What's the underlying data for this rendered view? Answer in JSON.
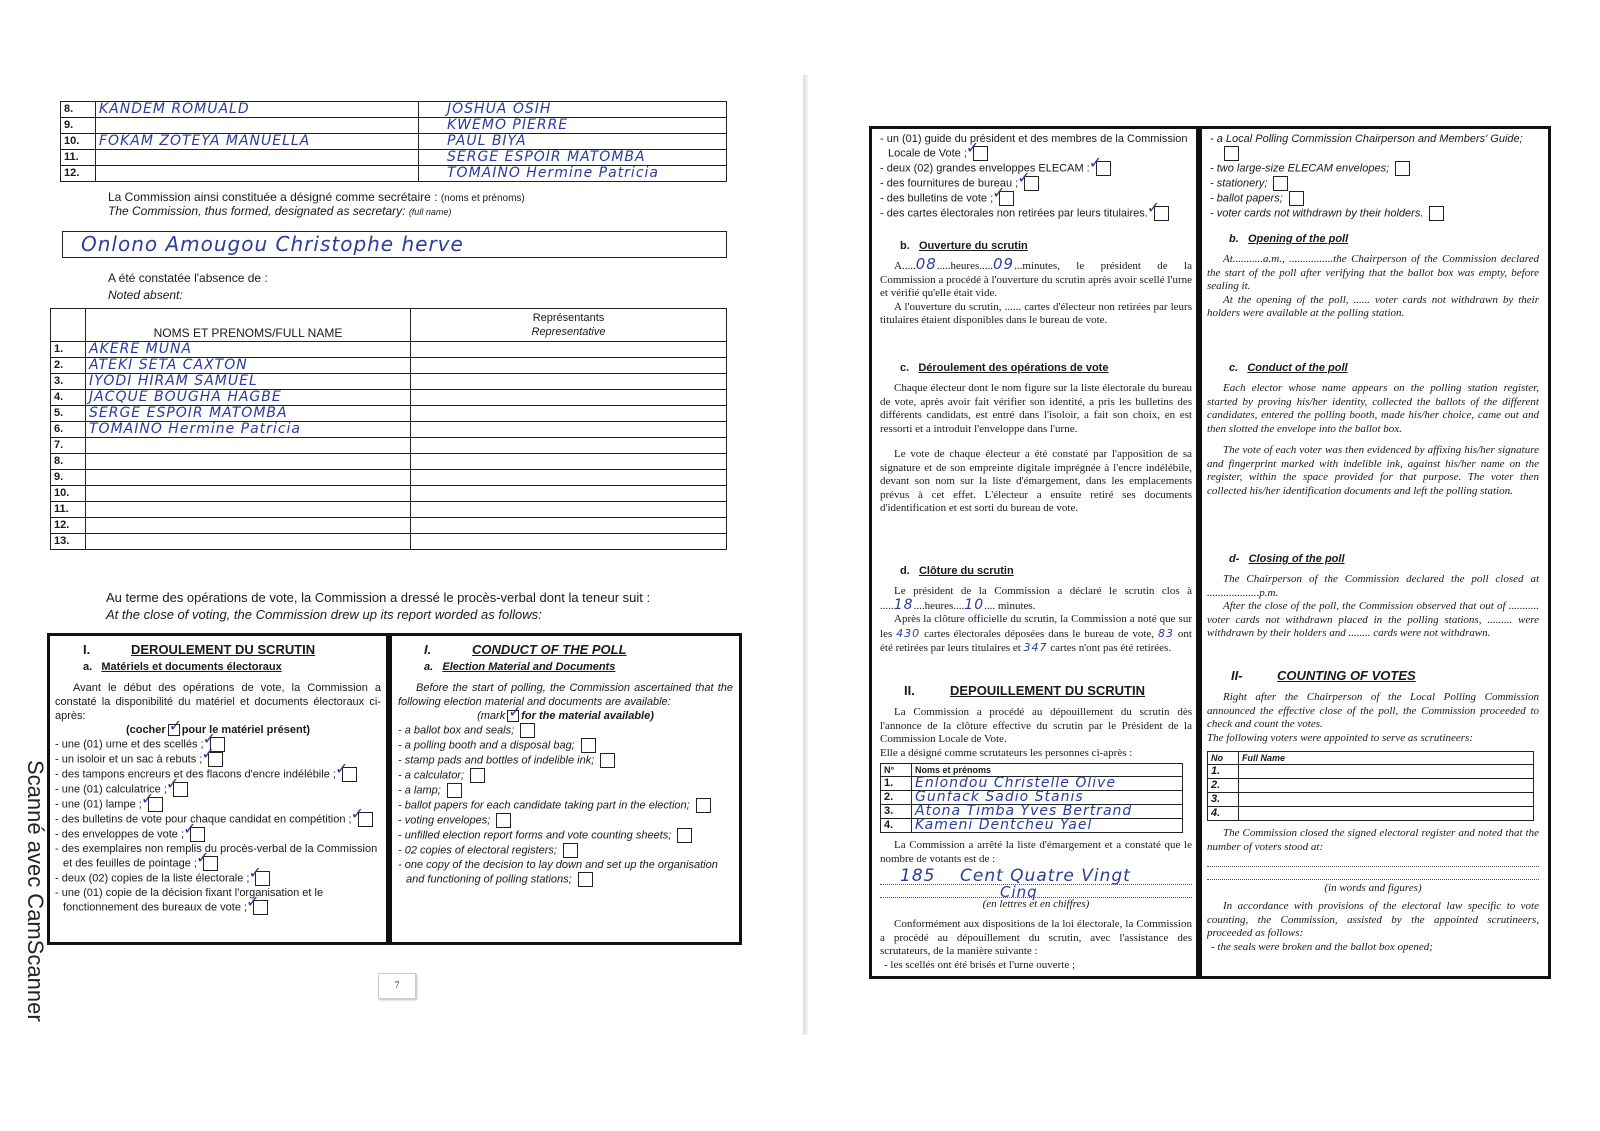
{
  "scanner_watermark": "Scanné avec CamScanner",
  "left_page": {
    "members": [
      {
        "no": "8.",
        "name1": "KANDEM ROMUALD",
        "name2": "JOSHUA OSIH"
      },
      {
        "no": "9.",
        "name1": "",
        "name2": "KWEMO PIERRE"
      },
      {
        "no": "10.",
        "name1": "FOKAM ZOTEYA MANUELLA",
        "name2": "PAUL BIYA"
      },
      {
        "no": "11.",
        "name1": "",
        "name2": "SERGE ESPOIR MATOMBA"
      },
      {
        "no": "12.",
        "name1": "",
        "name2": "TOMAINO Hermine Patricia"
      }
    ],
    "secretary_label_fr": "La Commission ainsi constituée a désigné comme secrétaire :",
    "secretary_label_fr_note": "(noms et prénoms)",
    "secretary_label_en": "The Commission, thus formed, designated as secretary:",
    "secretary_label_en_note": "(full name)",
    "secretary_name": "Onlono Amougou Christophe herve",
    "absent_label_fr": "A été constatée l'absence de :",
    "absent_label_en": "Noted absent:",
    "absent_table": {
      "header_name": "NOMS ET PRENOMS/FULL NAME",
      "header_rep_fr": "Représentants",
      "header_rep_en": "Representative",
      "rows": [
        {
          "no": "1.",
          "name": "AKERE MUNA"
        },
        {
          "no": "2.",
          "name": "ATEKI SETA CAXTON"
        },
        {
          "no": "3.",
          "name": "IYODI HIRAM SAMUEL"
        },
        {
          "no": "4.",
          "name": "JACQUE BOUGHA HAGBE"
        },
        {
          "no": "5.",
          "name": "SERGE ESPOIR MATOMBA"
        },
        {
          "no": "6.",
          "name": "TOMAINO Hermine Patricia"
        },
        {
          "no": "7.",
          "name": ""
        },
        {
          "no": "8.",
          "name": ""
        },
        {
          "no": "9.",
          "name": ""
        },
        {
          "no": "10.",
          "name": ""
        },
        {
          "no": "11.",
          "name": ""
        },
        {
          "no": "12.",
          "name": ""
        },
        {
          "no": "13.",
          "name": ""
        }
      ]
    },
    "close_text_fr": "Au terme des opérations de vote, la Commission a dressé le procès-verbal dont la teneur suit :",
    "close_text_en": "At the close of voting, the Commission drew up its report worded as follows:",
    "fr": {
      "section_num": "I.",
      "section_title": "DEROULEMENT DU SCRUTIN",
      "sub_num": "a.",
      "sub_title": "Matériels et documents électoraux",
      "intro": "Avant le début des opérations de vote, la Commission a constaté la disponibilité du matériel et documents électoraux ci-après:",
      "mark_pre": "(cocher",
      "mark_post": "pour le matériel présent)",
      "items": [
        {
          "label": "- une (01) urne et des scellés ;",
          "checked": true
        },
        {
          "label": "- un isoloir et un sac à rebuts ;",
          "checked": true
        },
        {
          "label": "- des tampons encreurs et des flacons d'encre indélébile ;",
          "checked": true
        },
        {
          "label": "- une (01) calculatrice ;",
          "checked": true
        },
        {
          "label": "- une (01) lampe ;",
          "checked": true
        },
        {
          "label": "- des bulletins de vote pour chaque candidat en compétition ;",
          "checked": true
        },
        {
          "label": "- des enveloppes de vote ;",
          "checked": true
        },
        {
          "label": "- des exemplaires non remplis du procès-verbal de la Commission et des feuilles de pointage ;",
          "checked": true
        },
        {
          "label": "- deux (02) copies de la liste électorale ;",
          "checked": true
        },
        {
          "label": "- une (01) copie de la décision fixant l'organisation et le fonctionnement des bureaux de vote ;",
          "checked": true
        }
      ]
    },
    "en": {
      "section_num": "I.",
      "section_title": "CONDUCT OF THE POLL",
      "sub_num": "a.",
      "sub_title": "Election Material and Documents",
      "intro": "Before the start of polling, the Commission ascertained that the following election material and documents are available:",
      "mark_pre": "(mark",
      "mark_post": "for the material available)",
      "items": [
        {
          "label": "- a ballot box and seals;",
          "checked": false
        },
        {
          "label": "- a polling booth and a disposal bag;",
          "checked": false
        },
        {
          "label": "- stamp pads and bottles of indelible ink;",
          "checked": false
        },
        {
          "label": "- a calculator;",
          "checked": false
        },
        {
          "label": "- a lamp;",
          "checked": false
        },
        {
          "label": "- ballot papers for each candidate taking part in the election;",
          "checked": false
        },
        {
          "label": "- voting envelopes;",
          "checked": false
        },
        {
          "label": "- unfilled election report forms and vote counting sheets;",
          "checked": false
        },
        {
          "label": "- 02 copies of electoral registers;",
          "checked": false
        },
        {
          "label": "- one copy of the decision to lay down and set up the organisation and functioning of polling stations;",
          "checked": false
        }
      ]
    },
    "page_number": "7"
  },
  "right_page": {
    "fr": {
      "items": [
        {
          "label": "- un (01) guide du président et des membres de la Commission Locale de Vote ;",
          "checked": true
        },
        {
          "label": "- deux (02) grandes enveloppes ELECAM :",
          "checked": true
        },
        {
          "label": "- des fournitures de bureau ;",
          "checked": true
        },
        {
          "label": "- des bulletins de vote ;",
          "checked": true
        },
        {
          "label": "- des cartes électorales non retirées par leurs titulaires.",
          "checked": true
        }
      ],
      "b_num": "b.",
      "b_title": "Ouverture du scrutin",
      "b_p1_pre": "A.....",
      "b_hours": "08",
      "b_p1_mid": ".....heures.....",
      "b_minutes": "09",
      "b_p1_post": "...minutes, le président de la Commission a procédé à l'ouverture du scrutin après avoir scellé l'urne et vérifié qu'elle était vide.",
      "b_p2": "A l'ouverture du scrutin, ...... cartes d'électeur non retirées par leurs titulaires étaient disponibles dans le bureau de vote.",
      "c_num": "c.",
      "c_title": "Déroulement des opérations de vote",
      "c_p1": "Chaque électeur dont le nom figure sur la liste électorale du bureau de vote, après avoir fait vérifier son identité, a pris les bulletins des différents candidats, est entré dans l'isoloir, a fait son choix, en est ressorti et a introduit l'enveloppe dans l'urne.",
      "c_p2": "Le vote de chaque électeur a été constaté par l'apposition de sa signature et de son empreinte digitale imprégnée à l'encre indélébile, devant son nom sur la liste d'émargement, dans les emplacements prévus à cet effet. L'électeur a ensuite retiré ses documents d'identification et est sorti du bureau de vote.",
      "d_num": "d.",
      "d_title": "Clôture du scrutin",
      "d_p1_pre": "Le président de la Commission a déclaré le scrutin clos à .....",
      "d_hours": "18",
      "d_p1_mid": "....heures....",
      "d_minutes": "10",
      "d_p1_post": ".... minutes.",
      "d_p2_a": "Après la clôture officielle du scrutin, la Commission a noté que sur les ",
      "d_cards_total": "430",
      "d_p2_b": " cartes électorales déposées dans le bureau de vote, ",
      "d_cards_withdrawn": "83",
      "d_p2_c": " ont été retirées par leurs titulaires et ",
      "d_cards_not_withdrawn": "347",
      "d_p2_d": " cartes n'ont pas été retirées.",
      "ii_num": "II.",
      "ii_title": "DEPOUILLEMENT DU SCRUTIN",
      "ii_p1": "La Commission a procédé au dépouillement du scrutin dès l'annonce de la clôture effective du scrutin par le Président de la Commission Locale de Vote.",
      "ii_p2": "Elle a désigné comme scrutateurs les personnes ci-après :",
      "table_no": "N°",
      "table_name": "Noms et prénoms",
      "scrutineers": [
        {
          "no": "1.",
          "name": "Enlondou Christelle Olive"
        },
        {
          "no": "2.",
          "name": "Gunfack Sadio Stanis"
        },
        {
          "no": "3.",
          "name": "Atona Timba Yves Bertrand"
        },
        {
          "no": "4.",
          "name": "Kameni Dentcheu Yael"
        }
      ],
      "voters_p": "La Commission a arrêté la liste d'émargement et a constaté que le nombre de votants est de :",
      "voters_figure": "185",
      "voters_words_1": "Cent Quatre Vingt",
      "voters_words_2": "Cinq",
      "voters_note": "(en lettres et en chiffres)",
      "final_p": "Conformément aux dispositions de la loi électorale, la Commission a procédé au dépouillement du scrutin, avec l'assistance des scrutateurs, de la manière suivante :",
      "final_item": "- les scellés ont été brisés et l'urne ouverte ;"
    },
    "en": {
      "items": [
        {
          "label": "- a Local Polling Commission Chairperson and Members' Guide;",
          "checked": false
        },
        {
          "label": "- two large-size ELECAM envelopes;",
          "checked": false
        },
        {
          "label": "- stationery;",
          "checked": false
        },
        {
          "label": "- ballot papers;",
          "checked": false
        },
        {
          "label": "- voter cards not withdrawn by their holders.",
          "checked": false
        }
      ],
      "b_num": "b.",
      "b_title": "Opening of the poll",
      "b_p1": "At...........a.m., ................the Chairperson of the Commission declared the start of the poll after verifying that the ballot box was empty, before sealing it.",
      "b_p2": "At the opening of the poll, ...... voter cards not withdrawn by their holders were available at the polling station.",
      "c_num": "c.",
      "c_title": "Conduct of the poll",
      "c_p1": "Each elector whose name appears on the polling station register, started by proving his/her identity, collected the ballots of the different candidates, entered the polling booth, made his/her choice, came out and then slotted the envelope into the ballot box.",
      "c_p2": "The vote of each voter was then evidenced by affixing his/her signature and fingerprint marked with indelible ink, against his/her name on the register, within the space provided for that purpose. The voter then collected his/her identification documents and left the polling station.",
      "d_num": "d-",
      "d_title": "Closing of the poll",
      "d_p1": "The Chairperson of the Commission declared the poll closed at ...................p.m.",
      "d_p2": "After the close of the poll, the Commission observed that out of ........... voter cards not withdrawn placed in the polling stations, ......... were withdrawn by their holders and ........ cards were not withdrawn.",
      "ii_num": "II-",
      "ii_title": "COUNTING OF VOTES",
      "ii_p1": "Right after the Chairperson of the Local Polling Commission announced the effective close of the poll, the Commission proceeded to check and count the votes.",
      "ii_p2": "The following voters were appointed to serve as scrutineers:",
      "table_no": "No",
      "table_name": "Full Name",
      "scrutineers": [
        {
          "no": "1.",
          "name": ""
        },
        {
          "no": "2.",
          "name": ""
        },
        {
          "no": "3.",
          "name": ""
        },
        {
          "no": "4.",
          "name": ""
        }
      ],
      "voters_p": "The Commission closed the signed electoral register and noted that the number of voters stood at:",
      "voters_note": "(in words and figures)",
      "final_p": "In accordance with provisions of the electoral law specific to vote counting, the Commission, assisted by the appointed scrutineers, proceeded as follows:",
      "final_item": "- the seals were broken and the ballot box opened;"
    }
  },
  "colors": {
    "ink": "#2b3c9c",
    "print": "#1a1a1a"
  }
}
